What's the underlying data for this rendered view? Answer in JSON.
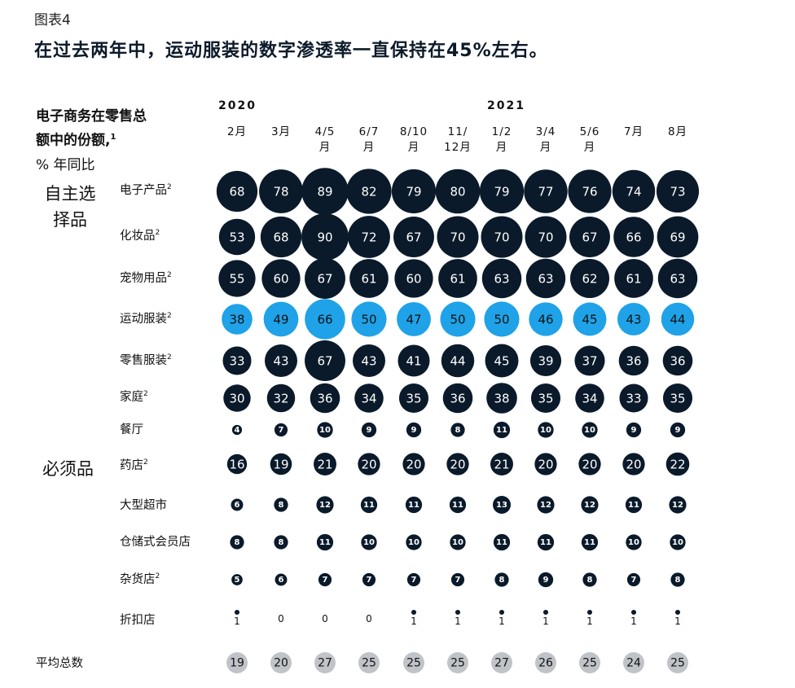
{
  "figure_label": "图表4",
  "headline": "在过去两年中，运动服装的数字渗透率一直保持在45%左右。",
  "metric_label_line1": "电子商务在零售总",
  "metric_label_line2": "额中的份额,",
  "metric_label_sup": "1",
  "metric_unit": "% 年同比",
  "colors": {
    "dark": "#0a1a2a",
    "highlight": "#1fa2e8",
    "average": "#c0c4c8",
    "text_light": "#ffffff",
    "text_dark": "#111111"
  },
  "chart_data": {
    "type": "bubble",
    "years": [
      {
        "label": "2020"
      },
      {
        "label": "2021"
      }
    ],
    "periods": [
      {
        "line1": "2月",
        "line2": ""
      },
      {
        "line1": "3月",
        "line2": ""
      },
      {
        "line1": "4/5",
        "line2": "月"
      },
      {
        "line1": "6/7",
        "line2": "月"
      },
      {
        "line1": "8/10",
        "line2": "月"
      },
      {
        "line1": "11/",
        "line2": "12月"
      },
      {
        "line1": "1/2",
        "line2": "月"
      },
      {
        "line1": "3/4",
        "line2": "月"
      },
      {
        "line1": "5/6",
        "line2": "月"
      },
      {
        "line1": "7月",
        "line2": ""
      },
      {
        "line1": "8月",
        "line2": ""
      }
    ],
    "groups": [
      {
        "label": "自主选择品"
      },
      {
        "label": "必须品"
      }
    ],
    "rows": [
      {
        "label": "电子产品",
        "sup": "2",
        "highlight": false,
        "values": [
          68,
          78,
          89,
          82,
          79,
          80,
          79,
          77,
          76,
          74,
          73
        ]
      },
      {
        "label": "化妆品",
        "sup": "2",
        "highlight": false,
        "values": [
          53,
          68,
          90,
          72,
          67,
          70,
          70,
          70,
          67,
          66,
          69
        ]
      },
      {
        "label": "宠物用品",
        "sup": "2",
        "highlight": false,
        "values": [
          55,
          60,
          67,
          61,
          60,
          61,
          63,
          63,
          62,
          61,
          63
        ]
      },
      {
        "label": "运动服装",
        "sup": "2",
        "highlight": true,
        "values": [
          38,
          49,
          66,
          50,
          47,
          50,
          50,
          46,
          45,
          43,
          44
        ]
      },
      {
        "label": "零售服装",
        "sup": "2",
        "highlight": false,
        "values": [
          33,
          43,
          67,
          43,
          41,
          44,
          45,
          39,
          37,
          36,
          36
        ]
      },
      {
        "label": "家庭",
        "sup": "2",
        "highlight": false,
        "values": [
          30,
          32,
          36,
          34,
          35,
          36,
          38,
          35,
          34,
          33,
          35
        ]
      },
      {
        "label": "餐厅",
        "sup": "",
        "highlight": false,
        "values": [
          4,
          7,
          10,
          9,
          9,
          8,
          11,
          10,
          10,
          9,
          9
        ]
      },
      {
        "label": "药店",
        "sup": "2",
        "highlight": false,
        "values": [
          16,
          19,
          21,
          20,
          20,
          20,
          21,
          20,
          20,
          20,
          22
        ]
      },
      {
        "label": "大型超市",
        "sup": "",
        "highlight": false,
        "values": [
          6,
          8,
          12,
          11,
          11,
          11,
          13,
          12,
          12,
          11,
          12
        ]
      },
      {
        "label": "仓储式会员店",
        "sup": "",
        "highlight": false,
        "values": [
          8,
          8,
          11,
          10,
          10,
          10,
          11,
          11,
          11,
          10,
          10
        ]
      },
      {
        "label": "杂货店",
        "sup": "2",
        "highlight": false,
        "values": [
          5,
          6,
          7,
          7,
          7,
          7,
          8,
          9,
          8,
          7,
          8
        ]
      },
      {
        "label": "折扣店",
        "sup": "",
        "highlight": false,
        "values": [
          1,
          0,
          0,
          0,
          1,
          1,
          1,
          1,
          1,
          1,
          1
        ]
      }
    ],
    "average": {
      "label": "平均总数",
      "values": [
        19,
        20,
        27,
        25,
        25,
        25,
        27,
        26,
        25,
        24,
        25
      ]
    }
  }
}
